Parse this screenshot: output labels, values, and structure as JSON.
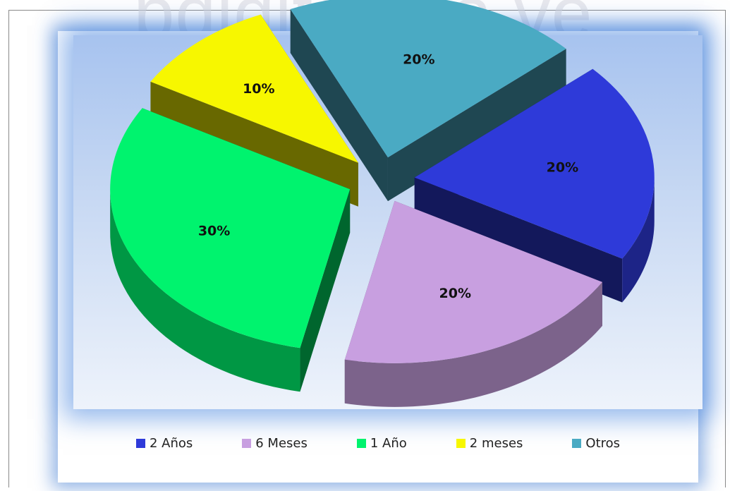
{
  "watermark": "pdigital.ula.ve",
  "chart_data": {
    "type": "pie",
    "title": "",
    "exploded": true,
    "three_d": true,
    "slices": [
      {
        "label": "2 Años",
        "value": 20,
        "display": "20%",
        "color": "#2e3ad9"
      },
      {
        "label": "6 Meses",
        "value": 20,
        "display": "20%",
        "color": "#c89fe0"
      },
      {
        "label": "1 Año",
        "value": 30,
        "display": "30%",
        "color": "#00f36e"
      },
      {
        "label": "2 meses",
        "value": 10,
        "display": "10%",
        "color": "#f7f700"
      },
      {
        "label": "Otros",
        "value": 20,
        "display": "20%",
        "color": "#4aaac3"
      }
    ],
    "legend_position": "bottom"
  }
}
